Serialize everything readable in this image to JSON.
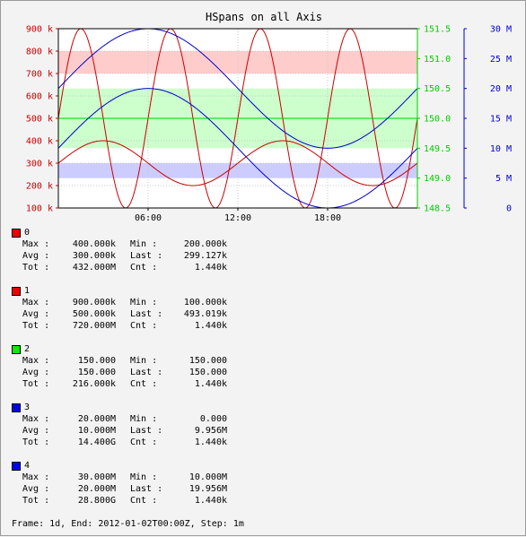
{
  "chart_data": {
    "type": "line",
    "title": "HSpans on all Axis",
    "x_ticks": [
      "06:00",
      "12:00",
      "18:00"
    ],
    "x_tick_hours": [
      6,
      12,
      18
    ],
    "x_range_hours": [
      0,
      24
    ],
    "grid": true,
    "axes": {
      "left": {
        "color": "#cc0000",
        "range": [
          100000,
          900000
        ],
        "ticks": [
          {
            "value": 900000,
            "label": "900 k"
          },
          {
            "value": 800000,
            "label": "800 k"
          },
          {
            "value": 700000,
            "label": "700 k"
          },
          {
            "value": 600000,
            "label": "600 k"
          },
          {
            "value": 500000,
            "label": "500 k"
          },
          {
            "value": 400000,
            "label": "400 k"
          },
          {
            "value": 300000,
            "label": "300 k"
          },
          {
            "value": 200000,
            "label": "200 k"
          },
          {
            "value": 100000,
            "label": "100 k"
          }
        ]
      },
      "right1": {
        "color": "#00cc00",
        "range": [
          148.5,
          151.5
        ],
        "ticks": [
          {
            "value": 151.5,
            "label": "151.5"
          },
          {
            "value": 151.0,
            "label": "151.0"
          },
          {
            "value": 150.5,
            "label": "150.5"
          },
          {
            "value": 150.0,
            "label": "150.0"
          },
          {
            "value": 149.5,
            "label": "149.5"
          },
          {
            "value": 149.0,
            "label": "149.0"
          },
          {
            "value": 148.5,
            "label": "148.5"
          }
        ]
      },
      "right2": {
        "color": "#0000cc",
        "range": [
          0,
          30000000
        ],
        "ticks": [
          {
            "value": 30000000,
            "label": "30 M"
          },
          {
            "value": 25000000,
            "label": "25 M"
          },
          {
            "value": 20000000,
            "label": "20 M"
          },
          {
            "value": 15000000,
            "label": "15 M"
          },
          {
            "value": 10000000,
            "label": "10 M"
          },
          {
            "value": 5000000,
            "label": "5 M"
          },
          {
            "value": 0,
            "label": "0"
          }
        ]
      }
    },
    "hspans": [
      {
        "axis": "left",
        "from": 700000,
        "to": 800000,
        "color": "#ff0000",
        "opacity": 0.2
      },
      {
        "axis": "right1",
        "from": 149.5,
        "to": 150.5,
        "color": "#00ff00",
        "opacity": 0.2
      },
      {
        "axis": "right2",
        "from": 5000000,
        "to": 7500000,
        "color": "#0000ff",
        "opacity": 0.2
      }
    ],
    "series": [
      {
        "name": "0",
        "axis": "left",
        "color": "#cc0000",
        "swatch": "#ee0000",
        "shape": "sine",
        "mean": 300000,
        "amplitude": 100000,
        "period_hours": 12,
        "phase_hours": 0
      },
      {
        "name": "1",
        "axis": "left",
        "color": "#cc0000",
        "swatch": "#ee0000",
        "shape": "sine",
        "mean": 500000,
        "amplitude": 400000,
        "period_hours": 6,
        "phase_hours": 0
      },
      {
        "name": "2",
        "axis": "right1",
        "color": "#00cc00",
        "swatch": "#00ee00",
        "shape": "constant",
        "mean": 150.0
      },
      {
        "name": "3",
        "axis": "right2",
        "color": "#0000cc",
        "swatch": "#0000ee",
        "shape": "sine",
        "mean": 10000000,
        "amplitude": 10000000,
        "period_hours": 24,
        "phase_hours": 0
      },
      {
        "name": "4",
        "axis": "right2",
        "color": "#0000cc",
        "swatch": "#0000ee",
        "shape": "cosine",
        "mean": 20000000,
        "amplitude": 10000000,
        "period_hours": 24,
        "phase_hours": 6
      }
    ]
  },
  "legend": [
    {
      "name": "0",
      "color": "#ee0000",
      "max": "400.000k",
      "min": "200.000k",
      "avg": "300.000k",
      "last": "299.127k",
      "tot": "432.000M",
      "cnt": "1.440k"
    },
    {
      "name": "1",
      "color": "#ee0000",
      "max": "900.000k",
      "min": "100.000k",
      "avg": "500.000k",
      "last": "493.019k",
      "tot": "720.000M",
      "cnt": "1.440k"
    },
    {
      "name": "2",
      "color": "#00ee00",
      "max": "150.000",
      "min": "150.000",
      "avg": "150.000",
      "last": "150.000",
      "tot": "216.000k",
      "cnt": "1.440k"
    },
    {
      "name": "3",
      "color": "#0000ee",
      "max": "20.000M",
      "min": "0.000",
      "avg": "10.000M",
      "last": "9.956M",
      "tot": "14.400G",
      "cnt": "1.440k"
    },
    {
      "name": "4",
      "color": "#0000ee",
      "max": "30.000M",
      "min": "10.000M",
      "avg": "20.000M",
      "last": "19.956M",
      "tot": "28.800G",
      "cnt": "1.440k"
    }
  ],
  "stat_labels": {
    "max": "Max :",
    "min": "Min :",
    "avg": "Avg :",
    "last": "Last :",
    "tot": "Tot :",
    "cnt": "Cnt :"
  },
  "footer": "Frame: 1d, End: 2012-01-02T00:00Z, Step: 1m"
}
